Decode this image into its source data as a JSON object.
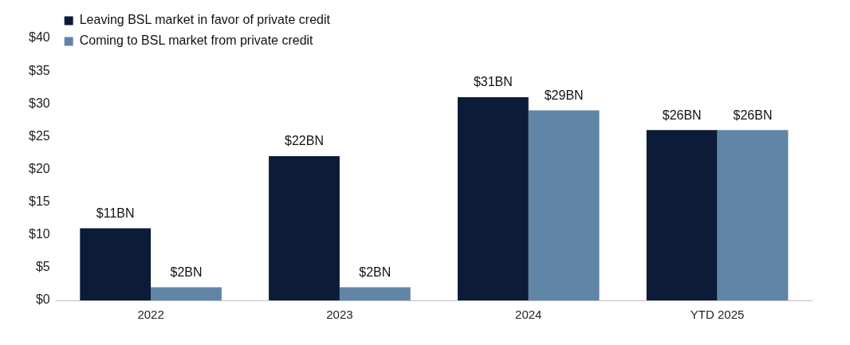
{
  "chart_data": {
    "type": "bar",
    "categories": [
      "2022",
      "2023",
      "2024",
      "YTD 2025"
    ],
    "series": [
      {
        "name": "Leaving BSL market in favor of private credit",
        "color": "#0b1b38",
        "values": [
          11,
          22,
          31,
          26
        ],
        "value_labels": [
          "$11BN",
          "$22BN",
          "$31BN",
          "$26BN"
        ]
      },
      {
        "name": "Coming to BSL market from private credit",
        "color": "#6185a7",
        "values": [
          2,
          2,
          29,
          26
        ],
        "value_labels": [
          "$2BN",
          "$2BN",
          "$29BN",
          "$26BN"
        ]
      }
    ],
    "ylim": [
      0,
      40
    ],
    "yticks": [
      {
        "value": 0,
        "label": "$0"
      },
      {
        "value": 5,
        "label": "$5"
      },
      {
        "value": 10,
        "label": "$10"
      },
      {
        "value": 15,
        "label": "$15"
      },
      {
        "value": 20,
        "label": "$20"
      },
      {
        "value": 25,
        "label": "$25"
      },
      {
        "value": 30,
        "label": "$30"
      },
      {
        "value": 35,
        "label": "$35"
      },
      {
        "value": 40,
        "label": "$40"
      }
    ],
    "grid": false,
    "legend": "top left"
  }
}
